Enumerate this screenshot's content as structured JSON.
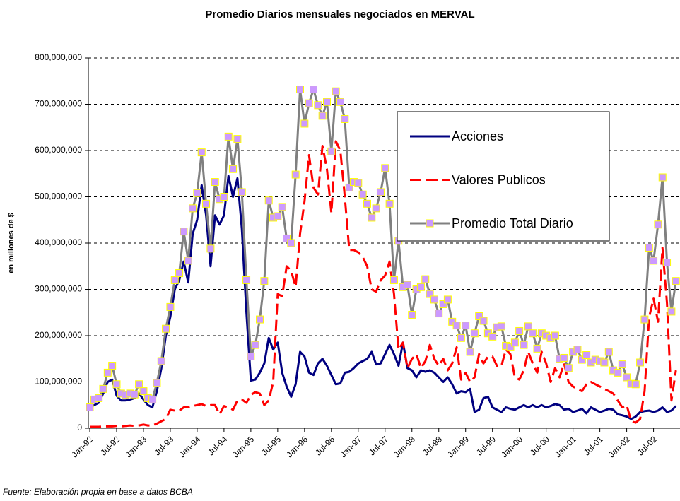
{
  "chart_data": {
    "type": "line",
    "title": "Promedio Diarios mensuales negociados en MERVAL",
    "y_label": "en millones de $",
    "footnote": "Fuente:  Elaboración propia en base a datos BCBA",
    "categories": [
      "Jan-92",
      null,
      null,
      null,
      null,
      null,
      "Jul-92",
      null,
      null,
      null,
      null,
      null,
      "Jan-93",
      null,
      null,
      null,
      null,
      null,
      "Jul-93",
      null,
      null,
      null,
      null,
      null,
      "Jan-94",
      null,
      null,
      null,
      null,
      null,
      "Jul-94",
      null,
      null,
      null,
      null,
      null,
      "Jan-95",
      null,
      null,
      null,
      null,
      null,
      "Jul-95",
      null,
      null,
      null,
      null,
      null,
      "Jan-96",
      null,
      null,
      null,
      null,
      null,
      "Jul-96",
      null,
      null,
      null,
      null,
      null,
      "Jan-97",
      null,
      null,
      null,
      null,
      null,
      "Jul-97",
      null,
      null,
      null,
      null,
      null,
      "Jan-98",
      null,
      null,
      null,
      null,
      null,
      "Jul-98",
      null,
      null,
      null,
      null,
      null,
      "Jan-99",
      null,
      null,
      null,
      null,
      null,
      "Jul-99",
      null,
      null,
      null,
      null,
      null,
      "Jan-00",
      null,
      null,
      null,
      null,
      null,
      "Jul-00",
      null,
      null,
      null,
      null,
      null,
      "Jan-01",
      null,
      null,
      null,
      null,
      null,
      "Jul-01",
      null,
      null,
      null,
      null,
      null,
      "Jan-02",
      null,
      null,
      null,
      null,
      null,
      "Jul-02",
      null,
      null,
      null,
      null,
      null
    ],
    "ylim": [
      0,
      800000000
    ],
    "yticks": [
      0,
      {
        "value": 100000000,
        "label": "100,000,000"
      },
      {
        "value": 200000000,
        "label": "200,000,000"
      },
      {
        "value": 300000000,
        "label": "300,000,000"
      },
      {
        "value": 400000000,
        "label": "400,000,000"
      },
      {
        "value": 500000000,
        "label": "500,000,000"
      },
      {
        "value": 600000000,
        "label": "600,000,000"
      },
      {
        "value": 700000000,
        "label": "700,000,000"
      },
      {
        "value": 800000000,
        "label": "800,000,000"
      }
    ],
    "grid": true,
    "series": [
      {
        "name": "Acciones",
        "color": "#000080",
        "style": "solid",
        "values": [
          45000000.0,
          50000000.0,
          55000000.0,
          75000000.0,
          100000000.0,
          105000000.0,
          70000000.0,
          60000000.0,
          60000000.0,
          62000000.0,
          65000000.0,
          75000000.0,
          62000000.0,
          50000000.0,
          45000000.0,
          80000000.0,
          130000000.0,
          200000000.0,
          240000000.0,
          300000000.0,
          320000000.0,
          360000000.0,
          315000000.0,
          420000000.0,
          450000000.0,
          525000000.0,
          460000000.0,
          350000000.0,
          460000000.0,
          440000000.0,
          460000000.0,
          545000000.0,
          500000000.0,
          540000000.0,
          430000000.0,
          250000000.0,
          103000000.0,
          105000000.0,
          120000000.0,
          140000000.0,
          195000000.0,
          170000000.0,
          185000000.0,
          120000000.0,
          90000000.0,
          68000000.0,
          95000000.0,
          165000000.0,
          155000000.0,
          120000000.0,
          115000000.0,
          140000000.0,
          150000000.0,
          135000000.0,
          115000000.0,
          95000000.0,
          97000000.0,
          120000000.0,
          122000000.0,
          130000000.0,
          140000000.0,
          145000000.0,
          150000000.0,
          165000000.0,
          138000000.0,
          140000000.0,
          160000000.0,
          180000000.0,
          160000000.0,
          135000000.0,
          185000000.0,
          130000000.0,
          125000000.0,
          110000000.0,
          125000000.0,
          122000000.0,
          125000000.0,
          120000000.0,
          110000000.0,
          100000000.0,
          110000000.0,
          95000000.0,
          75000000.0,
          80000000.0,
          78000000.0,
          85000000.0,
          35000000.0,
          40000000.0,
          65000000.0,
          68000000.0,
          45000000.0,
          40000000.0,
          35000000.0,
          45000000.0,
          42000000.0,
          40000000.0,
          45000000.0,
          50000000.0,
          45000000.0,
          50000000.0,
          45000000.0,
          50000000.0,
          45000000.0,
          48000000.0,
          52000000.0,
          50000000.0,
          40000000.0,
          42000000.0,
          35000000.0,
          38000000.0,
          42000000.0,
          32000000.0,
          45000000.0,
          40000000.0,
          35000000.0,
          38000000.0,
          42000000.0,
          40000000.0,
          30000000.0,
          28000000.0,
          25000000.0,
          20000000.0,
          25000000.0,
          35000000.0,
          37000000.0,
          38000000.0,
          35000000.0,
          38000000.0,
          45000000.0,
          35000000.0,
          38000000.0,
          48000000.0
        ]
      },
      {
        "name": "Valores Publicos",
        "color": "#ff0000",
        "style": "dashed",
        "values": [
          3000000.0,
          3000000.0,
          3000000.0,
          4000000.0,
          4000000.0,
          4000000.0,
          5000000.0,
          4000000.0,
          5000000.0,
          6000000.0,
          5000000.0,
          6000000.0,
          8000000.0,
          6000000.0,
          6000000.0,
          10000000.0,
          15000000.0,
          20000000.0,
          40000000.0,
          38000000.0,
          38000000.0,
          45000000.0,
          45000000.0,
          48000000.0,
          50000000.0,
          52000000.0,
          48000000.0,
          50000000.0,
          50000000.0,
          30000000.0,
          48000000.0,
          45000000.0,
          40000000.0,
          60000000.0,
          62000000.0,
          55000000.0,
          72000000.0,
          78000000.0,
          75000000.0,
          50000000.0,
          60000000.0,
          100000000.0,
          290000000.0,
          285000000.0,
          350000000.0,
          340000000.0,
          305000000.0,
          420000000.0,
          490000000.0,
          590000000.0,
          520000000.0,
          505000000.0,
          610000000.0,
          560000000.0,
          465000000.0,
          620000000.0,
          600000000.0,
          500000000.0,
          385000000.0,
          385000000.0,
          380000000.0,
          370000000.0,
          350000000.0,
          300000000.0,
          295000000.0,
          320000000.0,
          330000000.0,
          360000000.0,
          290000000.0,
          170000000.0,
          185000000.0,
          130000000.0,
          150000000.0,
          160000000.0,
          130000000.0,
          145000000.0,
          180000000.0,
          150000000.0,
          135000000.0,
          150000000.0,
          125000000.0,
          140000000.0,
          175000000.0,
          105000000.0,
          120000000.0,
          100000000.0,
          110000000.0,
          160000000.0,
          140000000.0,
          155000000.0,
          155000000.0,
          135000000.0,
          135000000.0,
          170000000.0,
          160000000.0,
          110000000.0,
          105000000.0,
          125000000.0,
          165000000.0,
          140000000.0,
          120000000.0,
          165000000.0,
          140000000.0,
          100000000.0,
          130000000.0,
          110000000.0,
          140000000.0,
          100000000.0,
          90000000.0,
          85000000.0,
          80000000.0,
          95000000.0,
          100000000.0,
          95000000.0,
          90000000.0,
          85000000.0,
          80000000.0,
          75000000.0,
          60000000.0,
          45000000.0,
          50000000.0,
          15000000.0,
          12000000.0,
          20000000.0,
          80000000.0,
          240000000.0,
          280000000.0,
          230000000.0,
          390000000.0,
          270000000.0,
          60000000.0,
          125000000.0
        ]
      },
      {
        "name": "Promedio Total Diario",
        "color": "#808080",
        "marker_color": "#cc99ff",
        "marker_edge": "#ffff00",
        "style": "marker",
        "values": [
          45000000.0,
          62000000.0,
          65000000.0,
          85000000.0,
          120000000.0,
          135000000.0,
          95000000.0,
          75000000.0,
          72000000.0,
          75000000.0,
          73000000.0,
          95000000.0,
          80000000.0,
          65000000.0,
          62000000.0,
          98000000.0,
          145000000.0,
          215000000.0,
          262000000.0,
          320000000.0,
          335000000.0,
          425000000.0,
          362000000.0,
          475000000.0,
          508000000.0,
          596000000.0,
          485000000.0,
          388000000.0,
          532000000.0,
          495000000.0,
          500000000.0,
          630000000.0,
          560000000.0,
          625000000.0,
          510000000.0,
          320000000.0,
          155000000.0,
          180000000.0,
          235000000.0,
          318000000.0,
          492000000.0,
          455000000.0,
          458000000.0,
          478000000.0,
          410000000.0,
          400000000.0,
          548000000.0,
          732000000.0,
          658000000.0,
          702000000.0,
          732000000.0,
          698000000.0,
          675000000.0,
          705000000.0,
          598000000.0,
          728000000.0,
          705000000.0,
          668000000.0,
          520000000.0,
          532000000.0,
          530000000.0,
          505000000.0,
          485000000.0,
          455000000.0,
          475000000.0,
          510000000.0,
          562000000.0,
          485000000.0,
          320000000.0,
          405000000.0,
          305000000.0,
          310000000.0,
          245000000.0,
          300000000.0,
          305000000.0,
          322000000.0,
          290000000.0,
          278000000.0,
          248000000.0,
          268000000.0,
          278000000.0,
          230000000.0,
          222000000.0,
          195000000.0,
          222000000.0,
          165000000.0,
          205000000.0,
          242000000.0,
          232000000.0,
          205000000.0,
          198000000.0,
          218000000.0,
          220000000.0,
          178000000.0,
          175000000.0,
          185000000.0,
          210000000.0,
          180000000.0,
          220000000.0,
          205000000.0,
          172000000.0,
          205000000.0,
          200000000.0,
          195000000.0,
          200000000.0,
          150000000.0,
          152000000.0,
          130000000.0,
          165000000.0,
          170000000.0,
          148000000.0,
          158000000.0,
          142000000.0,
          148000000.0,
          145000000.0,
          142000000.0,
          165000000.0,
          125000000.0,
          120000000.0,
          138000000.0,
          110000000.0,
          96000000.0,
          95000000.0,
          142000000.0,
          235000000.0,
          390000000.0,
          362000000.0,
          440000000.0,
          542000000.0,
          358000000.0,
          252000000.0,
          318000000.0
        ]
      }
    ]
  }
}
